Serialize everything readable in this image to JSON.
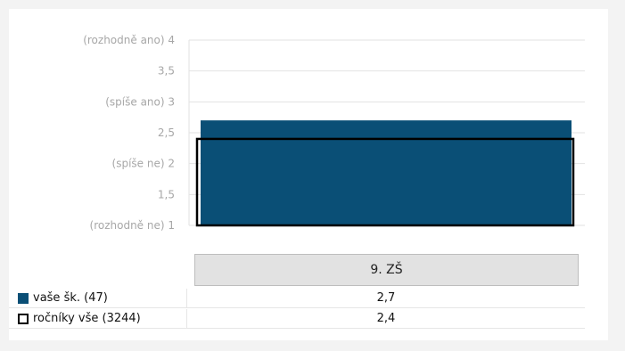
{
  "chart_data": {
    "type": "bar",
    "categories": [
      "9. ZŠ"
    ],
    "series": [
      {
        "name": "vaše šk. (47)",
        "values": [
          2.7
        ],
        "style": "filled",
        "color": "#0a4f76"
      },
      {
        "name": "ročníky vše (3244)",
        "values": [
          2.4
        ],
        "style": "outline",
        "color": "#000000"
      }
    ],
    "ylim": [
      1,
      4
    ],
    "yticks": [
      {
        "value": 4,
        "label": "(rozhodně ano) 4"
      },
      {
        "value": 3.5,
        "label": "3,5"
      },
      {
        "value": 3,
        "label": "(spíše ano) 3"
      },
      {
        "value": 2.5,
        "label": "2,5"
      },
      {
        "value": 2,
        "label": "(spíše ne) 2"
      },
      {
        "value": 1.5,
        "label": "1,5"
      },
      {
        "value": 1,
        "label": "(rozhodně ne) 1"
      }
    ],
    "grid": true,
    "legend_placement": "bottom-table"
  },
  "table": {
    "category_label": "9. ZŠ",
    "rows": [
      {
        "label": "vaše šk. (47)",
        "value": "2,7"
      },
      {
        "label": "ročníky vše (3244)",
        "value": "2,4"
      }
    ]
  }
}
